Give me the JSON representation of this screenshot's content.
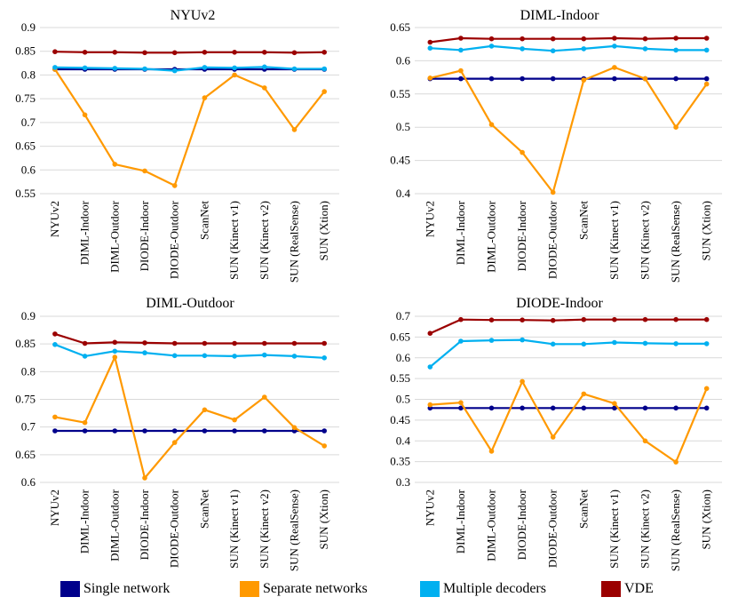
{
  "chart_data": [
    {
      "type": "line",
      "title": "NYUv2",
      "categories": [
        "NYUv2",
        "DIML-Indoor",
        "DIML-Outdoor",
        "DIODE-Indoor",
        "DIODE-Outdoor",
        "ScanNet",
        "SUN (Kinect v1)",
        "SUN (Kinect v2)",
        "SUN (RealSense)",
        "SUN (Xtion)"
      ],
      "ylim": [
        0.55,
        0.9
      ],
      "yticks": [
        "0.55",
        "0.6",
        "0.65",
        "0.7",
        "0.75",
        "0.8",
        "0.85",
        "0.9"
      ],
      "grid": true,
      "series": [
        {
          "name": "Single network",
          "values": [
            0.812,
            0.812,
            0.812,
            0.812,
            0.812,
            0.812,
            0.812,
            0.812,
            0.812,
            0.812
          ]
        },
        {
          "name": "Separate networks",
          "values": [
            0.812,
            0.716,
            0.612,
            0.598,
            0.567,
            0.752,
            0.8,
            0.773,
            0.685,
            0.765
          ]
        },
        {
          "name": "Multiple decoders",
          "values": [
            0.816,
            0.815,
            0.814,
            0.813,
            0.809,
            0.816,
            0.815,
            0.817,
            0.813,
            0.813
          ]
        },
        {
          "name": "VDE",
          "values": [
            0.849,
            0.848,
            0.848,
            0.847,
            0.847,
            0.848,
            0.848,
            0.848,
            0.847,
            0.848
          ]
        }
      ]
    },
    {
      "type": "line",
      "title": "DIML-Indoor",
      "categories": [
        "NYUv2",
        "DIML-Indoor",
        "DIML-Outdoor",
        "DIODE-Indoor",
        "DIODE-Outdoor",
        "ScanNet",
        "SUN (Kinect v1)",
        "SUN (Kinect v2)",
        "SUN (RealSense)",
        "SUN (Xtion)"
      ],
      "ylim": [
        0.4,
        0.65
      ],
      "yticks": [
        "0.4",
        "0.45",
        "0.5",
        "0.55",
        "0.6",
        "0.65"
      ],
      "grid": true,
      "series": [
        {
          "name": "Single network",
          "values": [
            0.573,
            0.573,
            0.573,
            0.573,
            0.573,
            0.573,
            0.573,
            0.573,
            0.573,
            0.573
          ]
        },
        {
          "name": "Separate networks",
          "values": [
            0.574,
            0.585,
            0.504,
            0.462,
            0.402,
            0.571,
            0.59,
            0.573,
            0.5,
            0.565
          ]
        },
        {
          "name": "Multiple decoders",
          "values": [
            0.619,
            0.616,
            0.622,
            0.618,
            0.615,
            0.618,
            0.622,
            0.618,
            0.616,
            0.616
          ]
        },
        {
          "name": "VDE",
          "values": [
            0.628,
            0.634,
            0.633,
            0.633,
            0.633,
            0.633,
            0.634,
            0.633,
            0.634,
            0.634
          ]
        }
      ]
    },
    {
      "type": "line",
      "title": "DIML-Outdoor",
      "categories": [
        "NYUv2",
        "DIML-Indoor",
        "DIML-Outdoor",
        "DIODE-Indoor",
        "DIODE-Outdoor",
        "ScanNet",
        "SUN (Kinect v1)",
        "SUN (Kinect v2)",
        "SUN (RealSense)",
        "SUN (Xtion)"
      ],
      "ylim": [
        0.6,
        0.9
      ],
      "yticks": [
        "0.6",
        "0.65",
        "0.7",
        "0.75",
        "0.8",
        "0.85",
        "0.9"
      ],
      "grid": true,
      "series": [
        {
          "name": "Single network",
          "values": [
            0.693,
            0.693,
            0.693,
            0.693,
            0.693,
            0.693,
            0.693,
            0.693,
            0.693,
            0.693
          ]
        },
        {
          "name": "Separate networks",
          "values": [
            0.718,
            0.708,
            0.826,
            0.608,
            0.672,
            0.731,
            0.713,
            0.754,
            0.699,
            0.666
          ]
        },
        {
          "name": "Multiple decoders",
          "values": [
            0.849,
            0.828,
            0.837,
            0.834,
            0.829,
            0.829,
            0.828,
            0.83,
            0.828,
            0.825
          ]
        },
        {
          "name": "VDE",
          "values": [
            0.868,
            0.851,
            0.853,
            0.852,
            0.851,
            0.851,
            0.851,
            0.851,
            0.851,
            0.851
          ]
        }
      ]
    },
    {
      "type": "line",
      "title": "DIODE-Indoor",
      "categories": [
        "NYUv2",
        "DIML-Indoor",
        "DIML-Outdoor",
        "DIODE-Indoor",
        "DIODE-Outdoor",
        "ScanNet",
        "SUN (Kinect v1)",
        "SUN (Kinect v2)",
        "SUN (RealSense)",
        "SUN (Xtion)"
      ],
      "ylim": [
        0.3,
        0.7
      ],
      "yticks": [
        "0.3",
        "0.35",
        "0.4",
        "0.45",
        "0.5",
        "0.55",
        "0.6",
        "0.65",
        "0.7"
      ],
      "grid": true,
      "series": [
        {
          "name": "Single network",
          "values": [
            0.479,
            0.479,
            0.479,
            0.479,
            0.479,
            0.479,
            0.479,
            0.479,
            0.479,
            0.479
          ]
        },
        {
          "name": "Separate networks",
          "values": [
            0.487,
            0.492,
            0.375,
            0.543,
            0.409,
            0.513,
            0.49,
            0.4,
            0.349,
            0.526
          ]
        },
        {
          "name": "Multiple decoders",
          "values": [
            0.578,
            0.64,
            0.642,
            0.643,
            0.633,
            0.633,
            0.637,
            0.635,
            0.634,
            0.634
          ]
        },
        {
          "name": "VDE",
          "values": [
            0.659,
            0.692,
            0.691,
            0.691,
            0.69,
            0.692,
            0.692,
            0.692,
            0.692,
            0.692
          ]
        }
      ]
    }
  ],
  "series_colors": {
    "Single network": "#00008b",
    "Separate networks": "#ff9900",
    "Multiple decoders": "#00b0f0",
    "VDE": "#9b0000"
  },
  "legend": {
    "items": [
      {
        "label": "Single network",
        "color": "#00008b"
      },
      {
        "label": "Separate networks",
        "color": "#ff9900"
      },
      {
        "label": "Multiple decoders",
        "color": "#00b0f0"
      },
      {
        "label": "VDE",
        "color": "#9b0000"
      }
    ]
  }
}
